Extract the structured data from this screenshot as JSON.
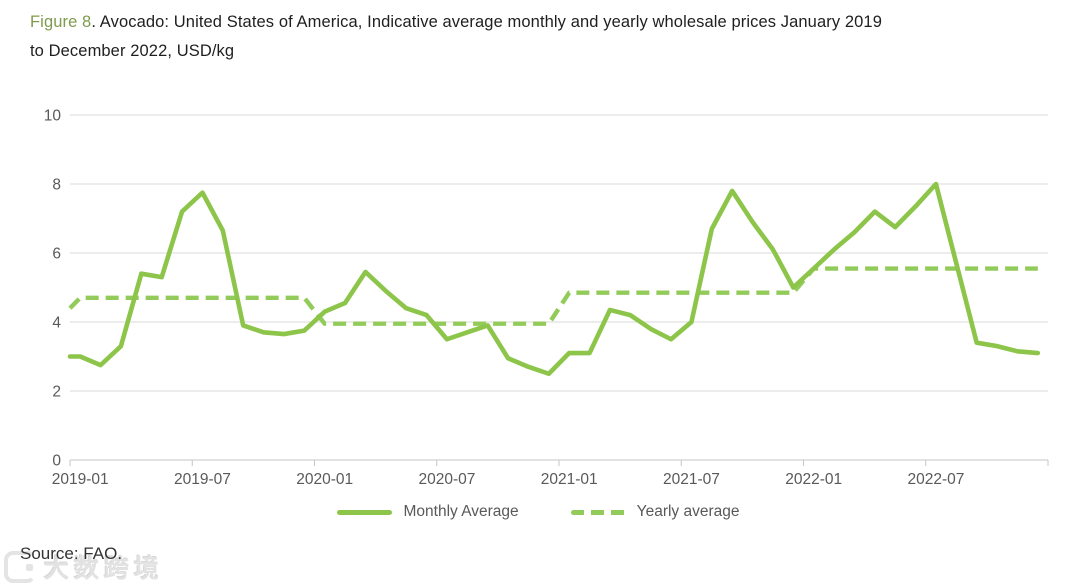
{
  "title": {
    "figure_label": "Figure 8",
    "line1_rest": ". Avocado: United States of America, Indicative average monthly and yearly wholesale prices January 2019",
    "line2": "to December 2022, USD/kg"
  },
  "legend": {
    "monthly": "Monthly Average",
    "yearly": "Yearly average"
  },
  "source": "Source: FAO.",
  "watermark": "大数跨境",
  "chart_data": {
    "type": "line",
    "title": "Avocado: United States of America, Indicative average monthly and yearly wholesale prices January 2019 to December 2022, USD/kg",
    "xlabel": "",
    "ylabel": "USD/kg",
    "ylim": [
      0,
      10
    ],
    "y_ticks": [
      0,
      2,
      4,
      6,
      8,
      10
    ],
    "x_tick_labels": [
      "2019-01",
      "2019-07",
      "2020-01",
      "2020-07",
      "2021-01",
      "2021-07",
      "2022-01",
      "2022-07"
    ],
    "grid": true,
    "legend_position": "bottom",
    "categories": [
      "2019-01",
      "2019-02",
      "2019-03",
      "2019-04",
      "2019-05",
      "2019-06",
      "2019-07",
      "2019-08",
      "2019-09",
      "2019-10",
      "2019-11",
      "2019-12",
      "2020-01",
      "2020-02",
      "2020-03",
      "2020-04",
      "2020-05",
      "2020-06",
      "2020-07",
      "2020-08",
      "2020-09",
      "2020-10",
      "2020-11",
      "2020-12",
      "2021-01",
      "2021-02",
      "2021-03",
      "2021-04",
      "2021-05",
      "2021-06",
      "2021-07",
      "2021-08",
      "2021-09",
      "2021-10",
      "2021-11",
      "2021-12",
      "2022-01",
      "2022-02",
      "2022-03",
      "2022-04",
      "2022-05",
      "2022-06",
      "2022-07",
      "2022-08",
      "2022-09",
      "2022-10",
      "2022-11",
      "2022-12"
    ],
    "series": [
      {
        "name": "Monthly Average",
        "style": "solid",
        "values": [
          3.0,
          2.75,
          3.3,
          5.4,
          5.3,
          7.2,
          7.75,
          6.65,
          3.9,
          3.7,
          3.65,
          3.75,
          4.3,
          4.55,
          5.45,
          4.9,
          4.4,
          4.2,
          3.5,
          3.7,
          3.9,
          2.95,
          2.7,
          2.5,
          3.1,
          3.1,
          4.35,
          4.2,
          3.8,
          3.5,
          4.0,
          6.7,
          7.8,
          6.9,
          6.1,
          5.0,
          5.55,
          6.1,
          6.6,
          7.2,
          6.75,
          7.35,
          8.0,
          5.7,
          3.4,
          3.3,
          3.15,
          3.1
        ]
      },
      {
        "name": "Yearly average",
        "style": "dashed-step",
        "years": [
          "2019",
          "2020",
          "2021",
          "2022"
        ],
        "values": [
          4.7,
          3.95,
          4.85,
          5.55
        ]
      }
    ],
    "clipped_start": {
      "monthly": 3.0,
      "yearly": 4.4
    },
    "colors": {
      "line_green": "#8dc54b",
      "dash_green": "#93cb5b",
      "grid": "#d9d9d9",
      "axis": "#c6c6c6",
      "axis_text": "#595959",
      "title_accent": "#7e9b4e",
      "title_text": "#1f1f1f",
      "source_text": "#333333",
      "watermark": "#e2e2e2"
    }
  }
}
